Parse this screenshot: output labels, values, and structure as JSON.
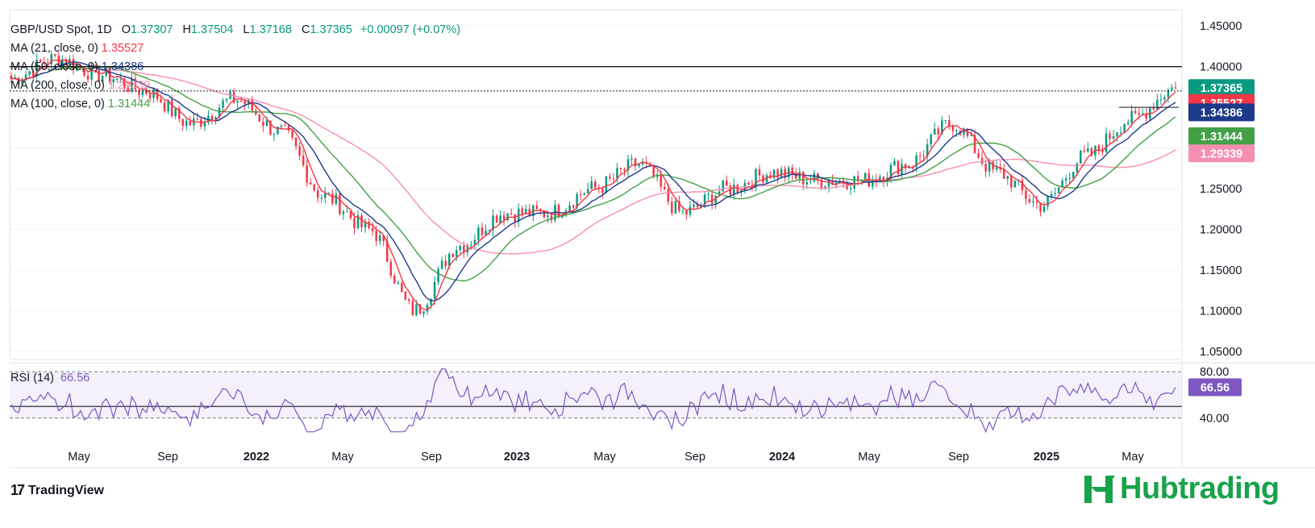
{
  "header": {
    "symbol": "GBP/USD Spot, 1D",
    "o_key": "O",
    "o_val": "1.37307",
    "h_key": "H",
    "h_val": "1.37504",
    "l_key": "L",
    "l_val": "1.37168",
    "c_key": "C",
    "c_val": "1.37365",
    "change": "+0.00097 (+0.07%)"
  },
  "indicators": [
    {
      "label": "MA (21, close, 0)",
      "value": "1.35527",
      "color": "#f23645"
    },
    {
      "label": "MA (50, close, 0)",
      "value": "1.34386",
      "color": "#1e3a8a"
    },
    {
      "label": "MA (200, close, 0)",
      "value": "1.29339",
      "color": "#f48fb1"
    },
    {
      "label": "MA (100, close, 0)",
      "value": "1.31444",
      "color": "#43a047"
    }
  ],
  "rsi": {
    "label": "RSI (14)",
    "value": "66.56",
    "upper_label": "80.00",
    "lower_label": "40.00",
    "color": "#7e57c2"
  },
  "branding": {
    "tradingview": "TradingView",
    "hub": "Hubtrading"
  },
  "colors": {
    "up": "#089981",
    "down": "#f23645",
    "ma21": "#f23645",
    "ma50": "#1e3a8a",
    "ma100": "#43a047",
    "ma200": "#f48fb1",
    "rsi": "#7e57c2",
    "brand": "#17a34a"
  },
  "chart_data": [
    {
      "type": "candlestick",
      "title": "GBP/USD Spot, 1D",
      "x_tick_labels": [
        "May",
        "Sep",
        "2022",
        "May",
        "Sep",
        "2023",
        "May",
        "Sep",
        "2024",
        "May",
        "Sep",
        "2025",
        "May"
      ],
      "y_tick_labels": [
        "1.45000",
        "1.40000",
        "1.35000",
        "1.30000",
        "1.25000",
        "1.20000",
        "1.15000",
        "1.10000",
        "1.05000"
      ],
      "ylim": [
        1.04,
        1.47
      ],
      "close_approx": {
        "x": [
          "2021-03",
          "2021-05",
          "2021-07",
          "2021-09",
          "2021-11",
          "2022-01",
          "2022-03",
          "2022-05",
          "2022-07",
          "2022-09",
          "2022-11",
          "2023-01",
          "2023-03",
          "2023-05",
          "2023-07",
          "2023-09",
          "2023-11",
          "2024-01",
          "2024-03",
          "2024-05",
          "2024-07",
          "2024-09",
          "2024-11",
          "2025-01",
          "2025-03",
          "2025-05",
          "2025-06"
        ],
        "values": [
          1.385,
          1.41,
          1.39,
          1.37,
          1.33,
          1.36,
          1.32,
          1.24,
          1.2,
          1.1,
          1.18,
          1.22,
          1.22,
          1.25,
          1.28,
          1.22,
          1.25,
          1.27,
          1.26,
          1.26,
          1.28,
          1.33,
          1.27,
          1.23,
          1.29,
          1.335,
          1.37365
        ]
      },
      "series": [
        {
          "name": "MA (21, close, 0)",
          "last": 1.35527
        },
        {
          "name": "MA (50, close, 0)",
          "last": 1.34386
        },
        {
          "name": "MA (100, close, 0)",
          "last": 1.31444
        },
        {
          "name": "MA (200, close, 0)",
          "last": 1.29339
        }
      ],
      "horizontal_lines": [
        1.4,
        1.37,
        1.35
      ],
      "price_labels": [
        {
          "value": 1.37365,
          "text": "1.37365",
          "color": "#089981"
        },
        {
          "value": 1.35527,
          "text": "1.35527",
          "color": "#f23645"
        },
        {
          "value": 1.34386,
          "text": "1.34386",
          "color": "#1e3a8a"
        },
        {
          "value": 1.31444,
          "text": "1.31444",
          "color": "#43a047"
        },
        {
          "value": 1.29339,
          "text": "1.29339",
          "color": "#f48fb1"
        }
      ]
    },
    {
      "type": "line",
      "title": "RSI (14)",
      "ylim": [
        25,
        85
      ],
      "bands": [
        80,
        40
      ],
      "midline": 50,
      "last": 66.56
    }
  ]
}
